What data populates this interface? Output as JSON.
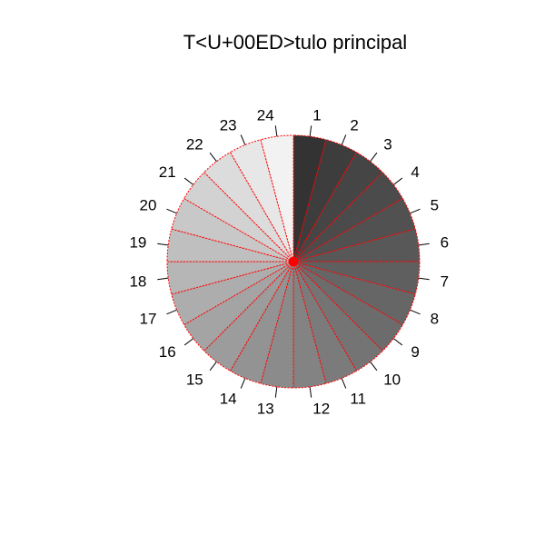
{
  "chart_data": {
    "type": "pie",
    "title": "T<U+00ED>tulo principal",
    "labels": [
      "1",
      "2",
      "3",
      "4",
      "5",
      "6",
      "7",
      "8",
      "9",
      "10",
      "11",
      "12",
      "13",
      "14",
      "15",
      "16",
      "17",
      "18",
      "19",
      "20",
      "21",
      "22",
      "23",
      "24"
    ],
    "values": [
      1,
      1,
      1,
      1,
      1,
      1,
      1,
      1,
      1,
      1,
      1,
      1,
      1,
      1,
      1,
      1,
      1,
      1,
      1,
      1,
      1,
      1,
      1,
      1
    ],
    "colors": [
      "#333333",
      "#3f3f3f",
      "#474747",
      "#4e4e4e",
      "#555555",
      "#5c5c5c",
      "#646464",
      "#6b6b6b",
      "#727272",
      "#7a7a7a",
      "#828282",
      "#898989",
      "#919191",
      "#999999",
      "#a1a1a1",
      "#aaaaaa",
      "#b3b3b3",
      "#bbbbbb",
      "#c4c4c4",
      "#cdcdcd",
      "#d7d7d7",
      "#e0e0e0",
      "#ebebeb",
      "#f5f5f5",
      "#ffffff"
    ],
    "slice_colors": [
      "#333333",
      "#3d3d3d",
      "#454545",
      "#4b4b4b",
      "#515151",
      "#585858",
      "#5f5f5f",
      "#666666",
      "#6c6c6c",
      "#747474",
      "#7b7b7b",
      "#838383",
      "#8b8b8b",
      "#939393",
      "#9c9c9c",
      "#a4a4a4",
      "#adadad",
      "#b6b6b6",
      "#bfbfbf",
      "#c8c8c8",
      "#d2d2d2",
      "#dcdcdc",
      "#e7e7e7",
      "#f2f2f2"
    ],
    "border_color": "#ff0000",
    "direction": "clockwise",
    "start": "top",
    "legend": "none"
  }
}
